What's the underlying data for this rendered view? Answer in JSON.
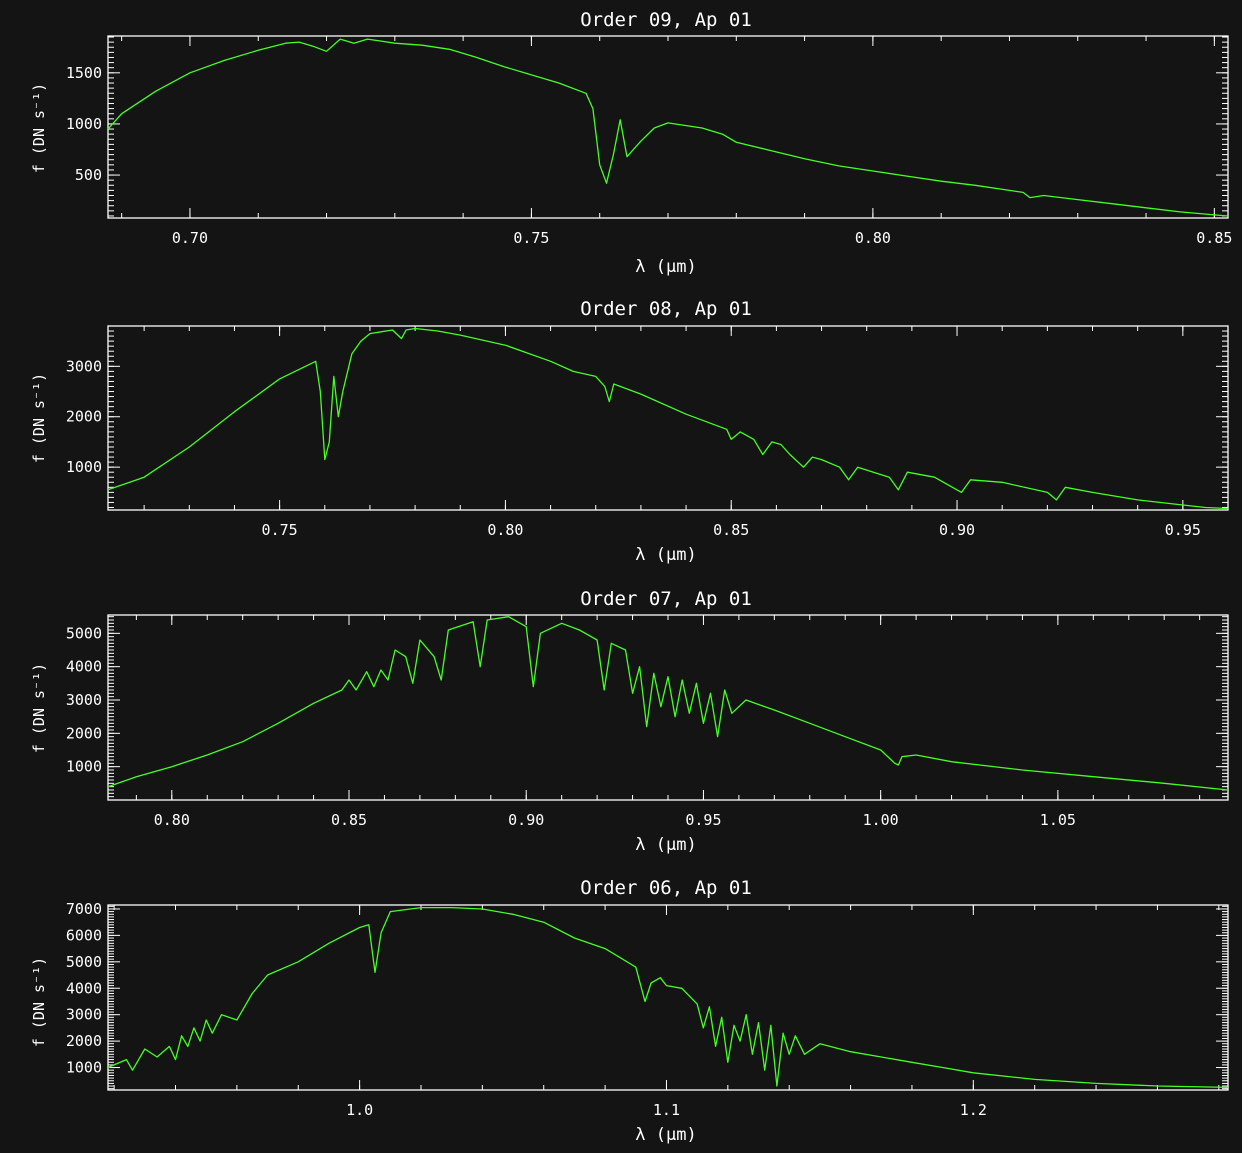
{
  "colors": {
    "background": "#141414",
    "axes": "#ffffff",
    "series": "#44ff22"
  },
  "chart_data": [
    {
      "type": "line",
      "title": "Order 09, Ap 01",
      "xlabel": "λ (μm)",
      "ylabel": "f (DN s⁻¹)",
      "xlim": [
        0.688,
        0.852
      ],
      "ylim": [
        80,
        1860
      ],
      "xticks": [
        {
          "v": 0.7,
          "label": "0.70"
        },
        {
          "v": 0.75,
          "label": "0.75"
        },
        {
          "v": 0.8,
          "label": "0.80"
        },
        {
          "v": 0.85,
          "label": "0.85"
        }
      ],
      "yticks": [
        {
          "v": 500,
          "label": "500"
        },
        {
          "v": 1000,
          "label": "1000"
        },
        {
          "v": 1500,
          "label": "1500"
        }
      ],
      "series": [
        {
          "color": "#44ff22",
          "x": [
            0.688,
            0.69,
            0.695,
            0.7,
            0.705,
            0.71,
            0.714,
            0.716,
            0.718,
            0.72,
            0.722,
            0.724,
            0.726,
            0.728,
            0.73,
            0.734,
            0.738,
            0.742,
            0.746,
            0.75,
            0.754,
            0.758,
            0.759,
            0.76,
            0.761,
            0.762,
            0.763,
            0.764,
            0.766,
            0.768,
            0.77,
            0.775,
            0.778,
            0.78,
            0.785,
            0.79,
            0.795,
            0.8,
            0.805,
            0.81,
            0.815,
            0.82,
            0.822,
            0.823,
            0.825,
            0.83,
            0.835,
            0.84,
            0.845,
            0.85,
            0.852
          ],
          "y": [
            950,
            1100,
            1320,
            1500,
            1620,
            1720,
            1790,
            1800,
            1760,
            1710,
            1830,
            1790,
            1830,
            1810,
            1790,
            1770,
            1730,
            1650,
            1560,
            1480,
            1400,
            1300,
            1150,
            600,
            420,
            700,
            1040,
            680,
            830,
            960,
            1010,
            960,
            900,
            820,
            740,
            660,
            590,
            540,
            490,
            440,
            400,
            350,
            330,
            280,
            300,
            260,
            220,
            180,
            140,
            110,
            100
          ]
        }
      ]
    },
    {
      "type": "line",
      "title": "Order 08, Ap 01",
      "xlabel": "λ (μm)",
      "ylabel": "f (DN s⁻¹)",
      "xlim": [
        0.712,
        0.96
      ],
      "ylim": [
        150,
        3800
      ],
      "xticks": [
        {
          "v": 0.75,
          "label": "0.75"
        },
        {
          "v": 0.8,
          "label": "0.80"
        },
        {
          "v": 0.85,
          "label": "0.85"
        },
        {
          "v": 0.9,
          "label": "0.90"
        },
        {
          "v": 0.95,
          "label": "0.95"
        }
      ],
      "yticks": [
        {
          "v": 1000,
          "label": "1000"
        },
        {
          "v": 2000,
          "label": "2000"
        },
        {
          "v": 3000,
          "label": "3000"
        }
      ],
      "series": [
        {
          "color": "#44ff22",
          "x": [
            0.712,
            0.72,
            0.73,
            0.74,
            0.75,
            0.758,
            0.759,
            0.76,
            0.761,
            0.762,
            0.763,
            0.764,
            0.766,
            0.768,
            0.77,
            0.775,
            0.777,
            0.778,
            0.78,
            0.785,
            0.79,
            0.8,
            0.81,
            0.815,
            0.82,
            0.822,
            0.823,
            0.824,
            0.83,
            0.84,
            0.849,
            0.85,
            0.852,
            0.855,
            0.857,
            0.859,
            0.861,
            0.863,
            0.866,
            0.868,
            0.87,
            0.874,
            0.876,
            0.878,
            0.885,
            0.887,
            0.889,
            0.895,
            0.901,
            0.903,
            0.91,
            0.92,
            0.922,
            0.924,
            0.93,
            0.94,
            0.95,
            0.955,
            0.96
          ],
          "y": [
            550,
            800,
            1400,
            2100,
            2750,
            3100,
            2500,
            1150,
            1500,
            2800,
            2000,
            2500,
            3250,
            3500,
            3650,
            3720,
            3550,
            3720,
            3750,
            3700,
            3620,
            3420,
            3100,
            2900,
            2800,
            2600,
            2300,
            2650,
            2450,
            2050,
            1750,
            1550,
            1700,
            1550,
            1250,
            1500,
            1450,
            1250,
            1000,
            1200,
            1150,
            1000,
            750,
            1000,
            800,
            550,
            900,
            800,
            500,
            750,
            700,
            500,
            350,
            600,
            500,
            350,
            250,
            200,
            180
          ]
        }
      ]
    },
    {
      "type": "line",
      "title": "Order 07, Ap 01",
      "xlabel": "λ (μm)",
      "ylabel": "f (DN s⁻¹)",
      "xlim": [
        0.782,
        1.098
      ],
      "ylim": [
        0,
        5550
      ],
      "xticks": [
        {
          "v": 0.8,
          "label": "0.80"
        },
        {
          "v": 0.85,
          "label": "0.85"
        },
        {
          "v": 0.9,
          "label": "0.90"
        },
        {
          "v": 0.95,
          "label": "0.95"
        },
        {
          "v": 1.0,
          "label": "1.00"
        },
        {
          "v": 1.05,
          "label": "1.05"
        }
      ],
      "yticks": [
        {
          "v": 1000,
          "label": "1000"
        },
        {
          "v": 2000,
          "label": "2000"
        },
        {
          "v": 3000,
          "label": "3000"
        },
        {
          "v": 4000,
          "label": "4000"
        },
        {
          "v": 5000,
          "label": "5000"
        }
      ],
      "series": [
        {
          "color": "#44ff22",
          "x": [
            0.782,
            0.79,
            0.8,
            0.81,
            0.82,
            0.83,
            0.84,
            0.848,
            0.85,
            0.852,
            0.855,
            0.857,
            0.859,
            0.861,
            0.863,
            0.866,
            0.868,
            0.87,
            0.874,
            0.876,
            0.878,
            0.885,
            0.887,
            0.889,
            0.895,
            0.9,
            0.902,
            0.904,
            0.91,
            0.915,
            0.92,
            0.922,
            0.924,
            0.928,
            0.93,
            0.932,
            0.934,
            0.936,
            0.938,
            0.94,
            0.942,
            0.944,
            0.946,
            0.948,
            0.95,
            0.952,
            0.954,
            0.956,
            0.958,
            0.962,
            0.97,
            0.98,
            0.99,
            1.0,
            1.004,
            1.005,
            1.006,
            1.01,
            1.02,
            1.04,
            1.06,
            1.08,
            1.098
          ],
          "y": [
            400,
            700,
            1000,
            1350,
            1750,
            2300,
            2900,
            3300,
            3600,
            3300,
            3850,
            3400,
            3900,
            3600,
            4500,
            4300,
            3500,
            4800,
            4300,
            3600,
            5100,
            5350,
            4000,
            5400,
            5500,
            5200,
            3400,
            5000,
            5300,
            5100,
            4800,
            3300,
            4700,
            4500,
            3200,
            4000,
            2200,
            3800,
            2800,
            3700,
            2500,
            3600,
            2600,
            3500,
            2300,
            3200,
            1900,
            3300,
            2600,
            3000,
            2700,
            2300,
            1900,
            1500,
            1100,
            1050,
            1300,
            1350,
            1150,
            900,
            700,
            500,
            300
          ]
        }
      ]
    },
    {
      "type": "line",
      "title": "Order 06, Ap 01",
      "xlabel": "λ (μm)",
      "ylabel": "f (DN s⁻¹)",
      "xlim": [
        0.918,
        1.283
      ],
      "ylim": [
        150,
        7150
      ],
      "xticks": [
        {
          "v": 1.0,
          "label": "1.0"
        },
        {
          "v": 1.1,
          "label": "1.1"
        },
        {
          "v": 1.2,
          "label": "1.2"
        }
      ],
      "yticks": [
        {
          "v": 1000,
          "label": "1000"
        },
        {
          "v": 2000,
          "label": "2000"
        },
        {
          "v": 3000,
          "label": "3000"
        },
        {
          "v": 4000,
          "label": "4000"
        },
        {
          "v": 5000,
          "label": "5000"
        },
        {
          "v": 6000,
          "label": "6000"
        },
        {
          "v": 7000,
          "label": "7000"
        }
      ],
      "series": [
        {
          "color": "#44ff22",
          "x": [
            0.918,
            0.924,
            0.926,
            0.93,
            0.934,
            0.938,
            0.94,
            0.942,
            0.944,
            0.946,
            0.948,
            0.95,
            0.952,
            0.955,
            0.96,
            0.965,
            0.97,
            0.98,
            0.99,
            1.0,
            1.003,
            1.005,
            1.007,
            1.01,
            1.02,
            1.03,
            1.04,
            1.05,
            1.06,
            1.07,
            1.08,
            1.09,
            1.093,
            1.095,
            1.098,
            1.1,
            1.105,
            1.11,
            1.112,
            1.114,
            1.116,
            1.118,
            1.12,
            1.122,
            1.124,
            1.126,
            1.128,
            1.13,
            1.132,
            1.134,
            1.136,
            1.138,
            1.14,
            1.142,
            1.145,
            1.15,
            1.16,
            1.17,
            1.18,
            1.19,
            1.2,
            1.22,
            1.24,
            1.26,
            1.283
          ],
          "y": [
            1000,
            1300,
            900,
            1700,
            1400,
            1800,
            1300,
            2200,
            1800,
            2500,
            2000,
            2800,
            2300,
            3000,
            2800,
            3800,
            4500,
            5000,
            5700,
            6300,
            6400,
            4600,
            6100,
            6900,
            7050,
            7050,
            7000,
            6800,
            6500,
            5900,
            5500,
            4800,
            3500,
            4200,
            4400,
            4100,
            4000,
            3400,
            2500,
            3300,
            1800,
            2900,
            1200,
            2600,
            2000,
            3000,
            1500,
            2700,
            900,
            2600,
            300,
            2300,
            1500,
            2200,
            1500,
            1900,
            1600,
            1400,
            1200,
            1000,
            800,
            550,
            400,
            300,
            250
          ]
        }
      ]
    }
  ]
}
